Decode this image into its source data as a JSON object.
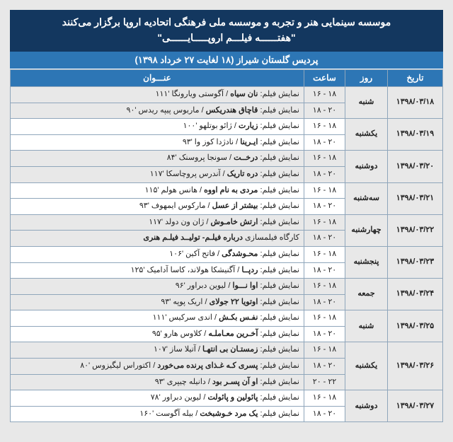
{
  "banner": {
    "line1": "موسسه سینمایی هنر و تجربه و موسسه ملی فرهنگی اتحادیه اروپا برگزار می‌کنند",
    "line2": "\"هفتــــــه فیلـــم اروپـــــایــــــی\""
  },
  "subheader": "پردیس گلستان شیراز (۱۸ لغایت ۲۷ خرداد ۱۳۹۸)",
  "columns": {
    "date": "تاریخ",
    "day": "روز",
    "time": "ساعت",
    "title": "عنـــوان"
  },
  "days": [
    {
      "date": "۱۳۹۸/۰۳/۱۸",
      "day": "شنبه",
      "slots": [
        {
          "time": "۱۶ - ۱۸",
          "lead": "نمایش فیلم: ",
          "film": "نان سیاه",
          "tail": " / آگوستی ویارونگا '۱۱۱"
        },
        {
          "time": "۱۸ - ۲۰",
          "lead": "نمایش فیلم: ",
          "film": "قاچاق هندریکس",
          "tail": " / ماریوس پیپه ریدس '۹۰"
        }
      ]
    },
    {
      "date": "۱۳۹۸/۰۳/۱۹",
      "day": "یکشنبه",
      "slots": [
        {
          "time": "۱۶ - ۱۸",
          "lead": "نمایش فیلم: ",
          "film": "زیارت",
          "tail": " / ژائو بوتلهو '۱۰۰"
        },
        {
          "time": "۱۸ - ۲۰",
          "lead": "نمایش فیلم: ",
          "film": "ایـرینا",
          "tail": " / نادژدا کوز وا '۹۳"
        }
      ]
    },
    {
      "date": "۱۳۹۸/۰۳/۲۰",
      "day": "دوشنبه",
      "slots": [
        {
          "time": "۱۶ - ۱۸",
          "lead": "نمایش فیلم: ",
          "film": "درخــت",
          "tail": " / سونجا پروسنک '۸۴"
        },
        {
          "time": "۱۸ - ۲۰",
          "lead": "نمایش فیلم: ",
          "film": "دره تاریک",
          "tail": " / آندرس پروچاسکا '۱۱۷"
        }
      ]
    },
    {
      "date": "۱۳۹۸/۰۳/۲۱",
      "day": "سه‌شنبه",
      "slots": [
        {
          "time": "۱۶ - ۱۸",
          "lead": "نمایش فیلم: ",
          "film": "مردی به نام اووه",
          "tail": " / هانس هولم '۱۱۵"
        },
        {
          "time": "۱۸ - ۲۰",
          "lead": "نمایش فیلم: ",
          "film": "بیشتر از عسل",
          "tail": " / مارکوس ایمهوف '۹۳"
        }
      ]
    },
    {
      "date": "۱۳۹۸/۰۳/۲۲",
      "day": "چهارشنبه",
      "slots": [
        {
          "time": "۱۶ - ۱۸",
          "lead": "نمایش فیلم: ",
          "film": "ارتش خامـوش",
          "tail": " / ژان ون دولد '۱۱۷"
        },
        {
          "time": "۱۸ - ۲۰",
          "lead": "کارگاه فیلمسازی ",
          "film": "درباره فیلـم- تولیــد فیلـم هنری",
          "tail": ""
        }
      ]
    },
    {
      "date": "۱۳۹۸/۰۳/۲۳",
      "day": "پنجشنبه",
      "slots": [
        {
          "time": "۱۶ - ۱۸",
          "lead": "نمایش فیلم: ",
          "film": "محـوشدگی",
          "tail": " / فاتح آکین '۱۰۶"
        },
        {
          "time": "۱۸ - ۲۰",
          "lead": "نمایش فیلم: ",
          "film": "ردپــا",
          "tail": " / آگنیشکا هولاند، کاسا آدامیک '۱۲۵"
        }
      ]
    },
    {
      "date": "۱۳۹۸/۰۳/۲۴",
      "day": "جمعه",
      "slots": [
        {
          "time": "۱۶ - ۱۸",
          "lead": "نمایش فیلم: ",
          "film": "اوا نـــوا",
          "tail": " / لیوین دبراور '۹۶"
        },
        {
          "time": "۱۸ - ۲۰",
          "lead": "نمایش فیلم: ",
          "film": "اوتویا ۲۲ جولای",
          "tail": " / اریک پوپه '۹۳"
        }
      ]
    },
    {
      "date": "۱۳۹۸/۰۳/۲۵",
      "day": "شنبه",
      "slots": [
        {
          "time": "۱۶ - ۱۸",
          "lead": "نمایش فیلم: ",
          "film": "نفـس بکـش",
          "tail": " / اندی سرکیس '۱۱۱"
        },
        {
          "time": "۱۸ - ۲۰",
          "lead": "نمایش فیلم: ",
          "film": "آخـرین معـاملـه",
          "tail": " / کلاوس هارو '۹۵"
        }
      ]
    },
    {
      "date": "۱۳۹۸/۰۳/۲۶",
      "day": "یکشنبه",
      "slots": [
        {
          "time": "۱۶ - ۱۸",
          "lead": "نمایش فیلم: ",
          "film": "زمستـان بی انتهـا",
          "tail": " / آتیلا ساز '۱۰۷"
        },
        {
          "time": "۱۸ - ۲۰",
          "lead": "نمایش فیلم: ",
          "film": "پسری کـه غـذای پرنده می‌خورد",
          "tail": " / اکتوراس لیگیزوس '۸۰"
        },
        {
          "time": "۲۰ - ۲۲",
          "lead": "نمایش فیلم: ",
          "film": "او آن پسـر بود",
          "tail": " / دانیله چیپری '۹۳"
        }
      ]
    },
    {
      "date": "۱۳۹۸/۰۳/۲۷",
      "day": "دوشنبه",
      "slots": [
        {
          "time": "۱۶ - ۱۸",
          "lead": "نمایش فیلم: ",
          "film": "پائولین و پائولت",
          "tail": " / لیوین دبراور '۷۸"
        },
        {
          "time": "۱۸ - ۲۰",
          "lead": "نمایش فیلم: ",
          "film": "یک مرد خـوشبخت",
          "tail": " / بیله آگوست '۱۶۰"
        }
      ]
    }
  ]
}
